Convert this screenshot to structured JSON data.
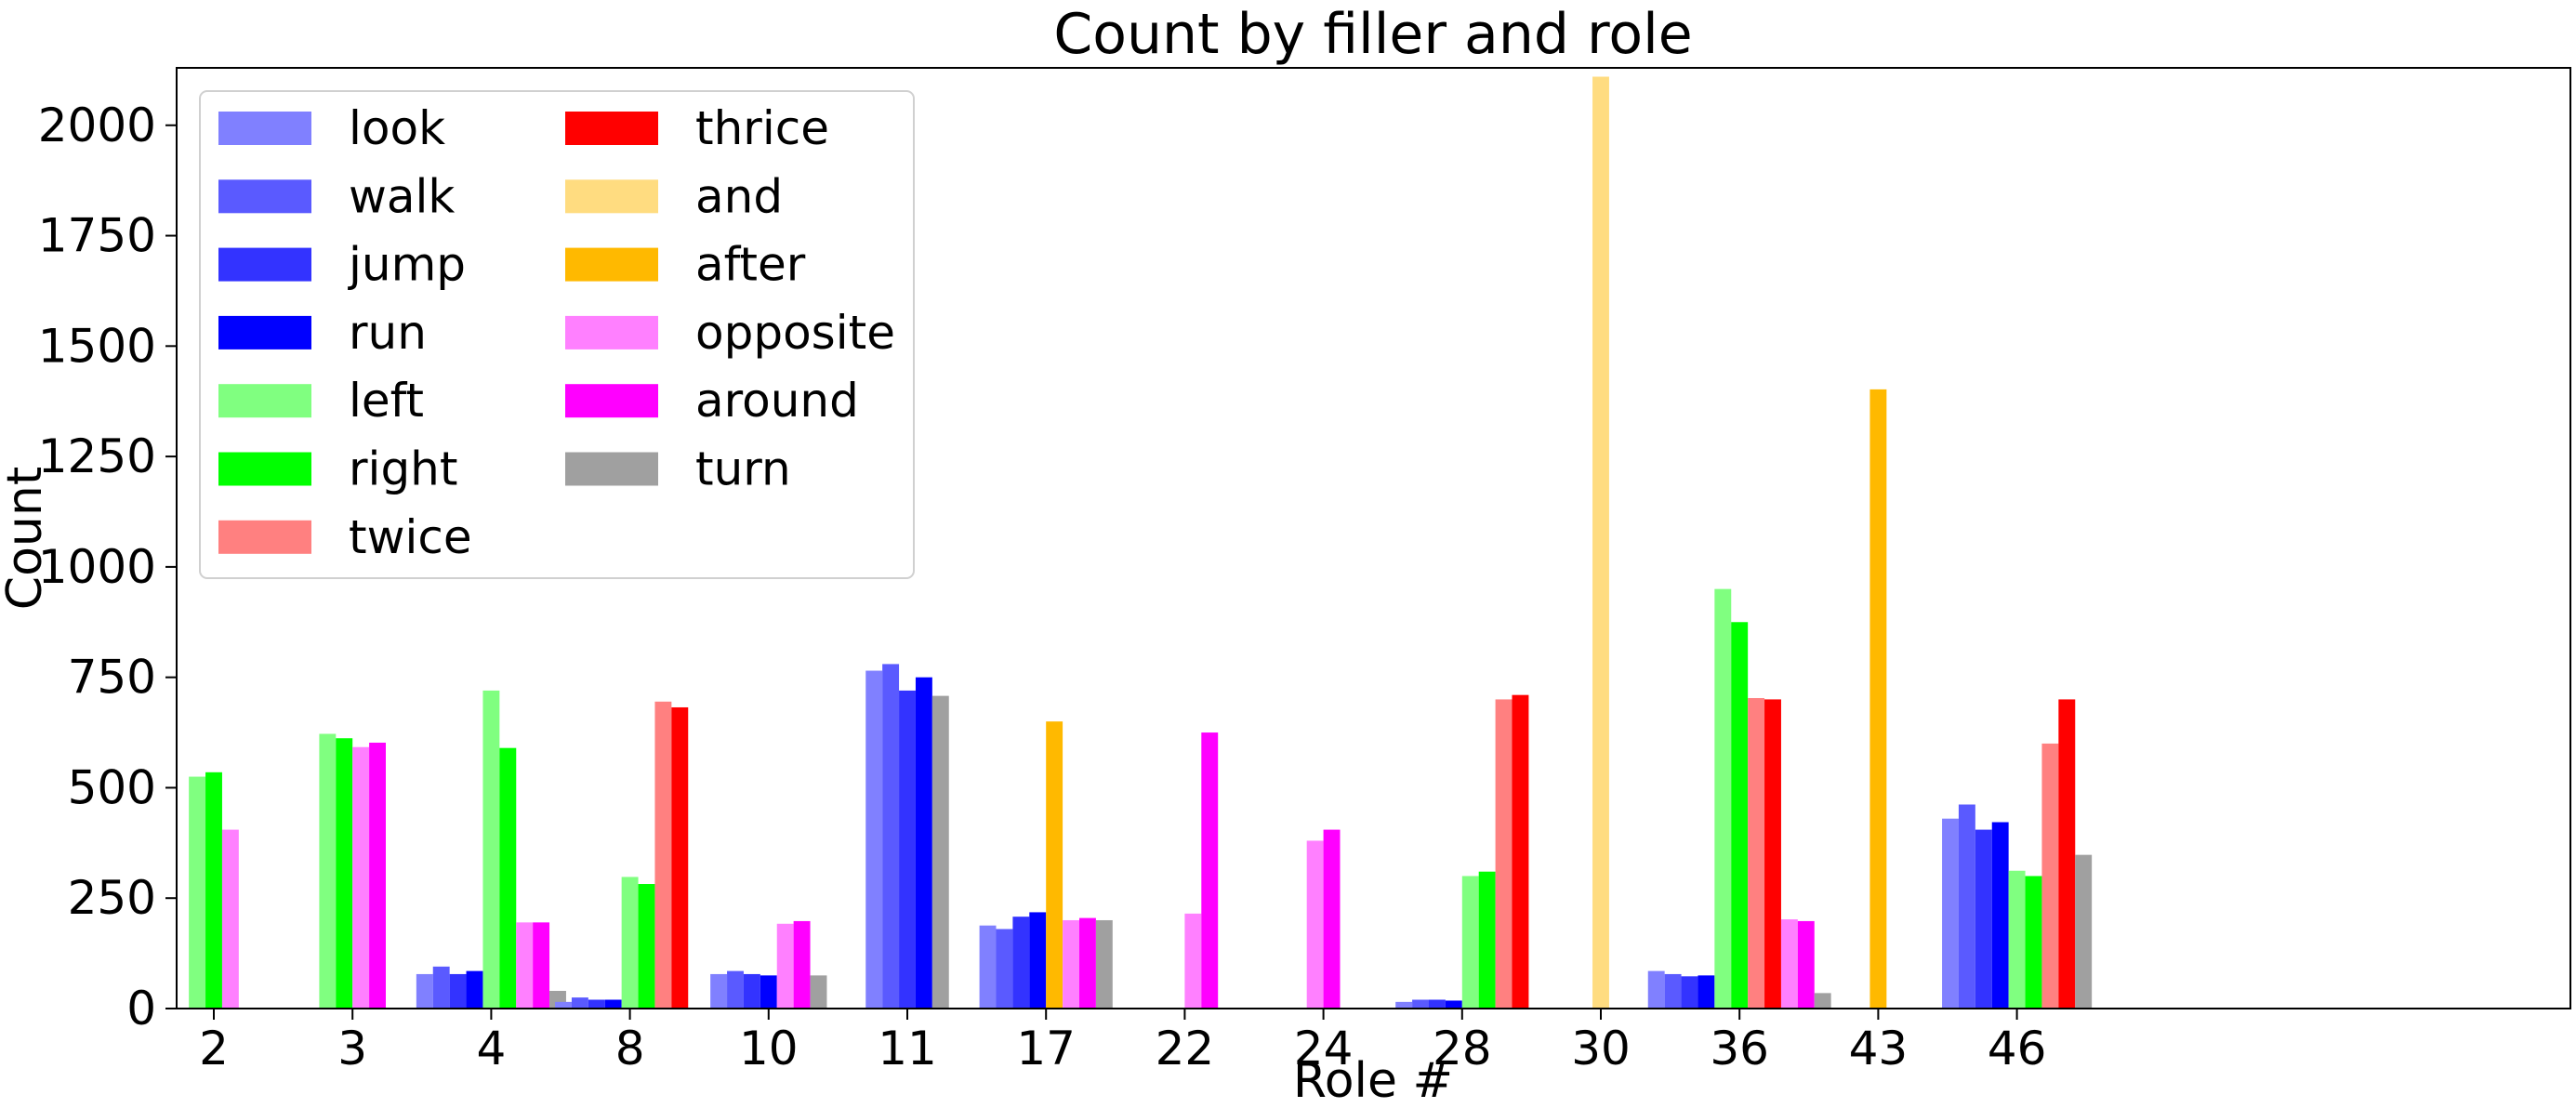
{
  "chart_data": {
    "type": "bar",
    "title": "Count by filler and role",
    "xlabel": "Role #",
    "ylabel": "Count",
    "ylim": [
      0,
      2130
    ],
    "yticks": [
      0,
      250,
      500,
      750,
      1000,
      1250,
      1500,
      1750,
      2000
    ],
    "grid": false,
    "legend_position": "top-left",
    "legend_columns": 2,
    "categories": [
      "2",
      "3",
      "4",
      "8",
      "10",
      "11",
      "17",
      "22",
      "24",
      "28",
      "30",
      "36",
      "43",
      "46"
    ],
    "series": [
      {
        "name": "look",
        "color": "#8080ff",
        "values": [
          0,
          0,
          78,
          15,
          78,
          765,
          188,
          0,
          0,
          15,
          0,
          85,
          0,
          430
        ]
      },
      {
        "name": "walk",
        "color": "#5a5aff",
        "values": [
          0,
          0,
          95,
          25,
          85,
          780,
          180,
          0,
          0,
          20,
          0,
          78,
          0,
          462
        ]
      },
      {
        "name": "jump",
        "color": "#3333ff",
        "values": [
          0,
          0,
          78,
          20,
          78,
          720,
          208,
          0,
          0,
          20,
          0,
          73,
          0,
          405
        ]
      },
      {
        "name": "run",
        "color": "#0000ff",
        "values": [
          0,
          0,
          85,
          20,
          75,
          750,
          218,
          0,
          0,
          18,
          0,
          75,
          0,
          422
        ]
      },
      {
        "name": "left",
        "color": "#80ff80",
        "values": [
          525,
          622,
          720,
          298,
          0,
          0,
          0,
          2,
          0,
          300,
          0,
          950,
          0,
          312
        ]
      },
      {
        "name": "right",
        "color": "#00ff00",
        "values": [
          535,
          612,
          590,
          282,
          0,
          0,
          0,
          2,
          0,
          310,
          0,
          875,
          0,
          300
        ]
      },
      {
        "name": "twice",
        "color": "#ff8080",
        "values": [
          0,
          0,
          0,
          695,
          0,
          0,
          0,
          0,
          0,
          700,
          0,
          703,
          0,
          600
        ]
      },
      {
        "name": "thrice",
        "color": "#ff0000",
        "values": [
          0,
          0,
          0,
          682,
          0,
          0,
          0,
          0,
          0,
          710,
          0,
          700,
          0,
          700
        ]
      },
      {
        "name": "and",
        "color": "#ffdc80",
        "values": [
          0,
          0,
          0,
          0,
          0,
          0,
          0,
          0,
          0,
          0,
          2110,
          0,
          0,
          0
        ]
      },
      {
        "name": "after",
        "color": "#ffb900",
        "values": [
          0,
          0,
          0,
          0,
          0,
          0,
          650,
          0,
          0,
          0,
          0,
          0,
          1402,
          0
        ]
      },
      {
        "name": "opposite",
        "color": "#ff80ff",
        "values": [
          405,
          592,
          195,
          0,
          192,
          0,
          200,
          215,
          380,
          0,
          0,
          202,
          0,
          0
        ]
      },
      {
        "name": "around",
        "color": "#ff00ff",
        "values": [
          0,
          602,
          195,
          2,
          198,
          0,
          205,
          625,
          405,
          0,
          0,
          198,
          0,
          0
        ]
      },
      {
        "name": "turn",
        "color": "#a0a0a0",
        "values": [
          0,
          0,
          40,
          0,
          75,
          708,
          200,
          0,
          0,
          0,
          0,
          35,
          0,
          348
        ]
      }
    ]
  }
}
